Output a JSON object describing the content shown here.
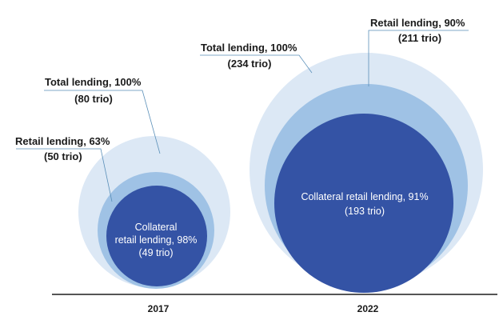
{
  "colors": {
    "total": "#dce8f5",
    "retail": "#9fc2e5",
    "collateral": "#3453a5",
    "leader": "#5a8fb8",
    "axis": "#555555"
  },
  "groups": [
    {
      "year": "2017",
      "total": {
        "line1": "Total lending, 100%",
        "line2": "(80 trio)"
      },
      "retail": {
        "line1": "Retail lending, 63%",
        "line2": "(50 trio)"
      },
      "collateral": {
        "line1": "Collateral",
        "line2": "retail lending, 98%",
        "line3": "(49 trio)"
      }
    },
    {
      "year": "2022",
      "total": {
        "line1": "Total lending, 100%",
        "line2": "(234 trio)"
      },
      "retail": {
        "line1": "Retail lending, 90%",
        "line2": "(211 trio)"
      },
      "collateral": {
        "line1": "Collateral retail lending, 91%",
        "line2": "(193 trio)"
      }
    }
  ]
}
